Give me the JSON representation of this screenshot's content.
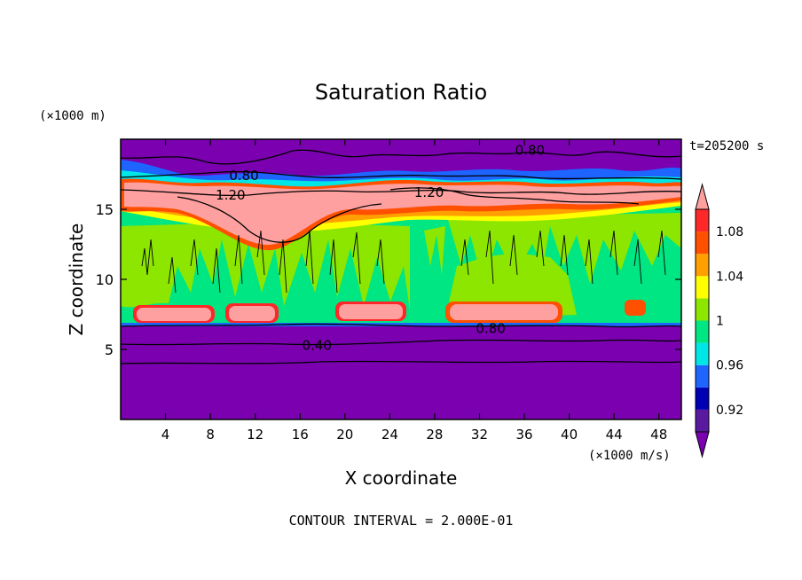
{
  "chart_data": {
    "type": "heatmap",
    "title": "Saturation Ratio",
    "xlabel": "X coordinate",
    "ylabel": "Z coordinate",
    "x_unit": "(×1000 m/s)",
    "y_unit": "(×1000 m)",
    "time_label": "t=205200 s",
    "footer": "CONTOUR INTERVAL = 2.000E-01",
    "xlim": [
      0,
      50
    ],
    "ylim": [
      0,
      20
    ],
    "x_ticks": [
      4,
      8,
      12,
      16,
      20,
      24,
      28,
      32,
      36,
      40,
      44,
      48
    ],
    "y_ticks": [
      5,
      10,
      15
    ],
    "colorbar": {
      "bands": [
        {
          "lo": null,
          "hi": 0.9,
          "color": "#7a00b0"
        },
        {
          "lo": 0.9,
          "hi": 0.92,
          "color": "#5a1aa0"
        },
        {
          "lo": 0.92,
          "hi": 0.94,
          "color": "#0000b4"
        },
        {
          "lo": 0.94,
          "hi": 0.96,
          "color": "#1e64ff"
        },
        {
          "lo": 0.96,
          "hi": 0.98,
          "color": "#00e6e6"
        },
        {
          "lo": 0.98,
          "hi": 1.0,
          "color": "#00e682"
        },
        {
          "lo": 1.0,
          "hi": 1.02,
          "color": "#8ce600"
        },
        {
          "lo": 1.02,
          "hi": 1.04,
          "color": "#ffff00"
        },
        {
          "lo": 1.04,
          "hi": 1.06,
          "color": "#ffa000"
        },
        {
          "lo": 1.06,
          "hi": 1.08,
          "color": "#ff5000"
        },
        {
          "lo": 1.08,
          "hi": 1.1,
          "color": "#ff2828"
        },
        {
          "lo": 1.1,
          "hi": null,
          "color": "#ffa0a0"
        }
      ],
      "tick_labels": [
        "0.92",
        "0.96",
        "1",
        "1.04",
        "1.08"
      ],
      "tick_values": [
        0.92,
        0.96,
        1.0,
        1.04,
        1.08
      ]
    },
    "contour_labels": [
      {
        "text": "0.80",
        "x": 36.5,
        "z": 19.2
      },
      {
        "text": "0.80",
        "x": 11.0,
        "z": 17.4
      },
      {
        "text": "1.20",
        "x": 9.8,
        "z": 16.0
      },
      {
        "text": "1.20",
        "x": 27.5,
        "z": 16.2
      },
      {
        "text": "0.80",
        "x": 33.0,
        "z": 6.5
      },
      {
        "text": "0.40",
        "x": 17.5,
        "z": 5.3
      }
    ],
    "regions": {
      "upper_dry_layer": {
        "z_range": [
          17.5,
          20
        ],
        "value": "< 0.90"
      },
      "supersaturated_band": {
        "z_range": [
          15.5,
          17.2
        ],
        "value": "> 1.10"
      },
      "near_saturated_layer": {
        "z_range": [
          7,
          15
        ],
        "value": "0.98 – 1.02"
      },
      "lower_dry_layer": {
        "z_range": [
          0,
          6.7
        ],
        "value": "< 0.90"
      },
      "low_level_pockets": [
        {
          "x_range": [
            1.5,
            8
          ],
          "value": "> 1.10"
        },
        {
          "x_range": [
            9.5,
            14
          ],
          "value": "> 1.10"
        },
        {
          "x_range": [
            19,
            25
          ],
          "value": "> 1.10"
        },
        {
          "x_range": [
            29,
            38.5
          ],
          "value": "> 1.10"
        }
      ]
    }
  }
}
